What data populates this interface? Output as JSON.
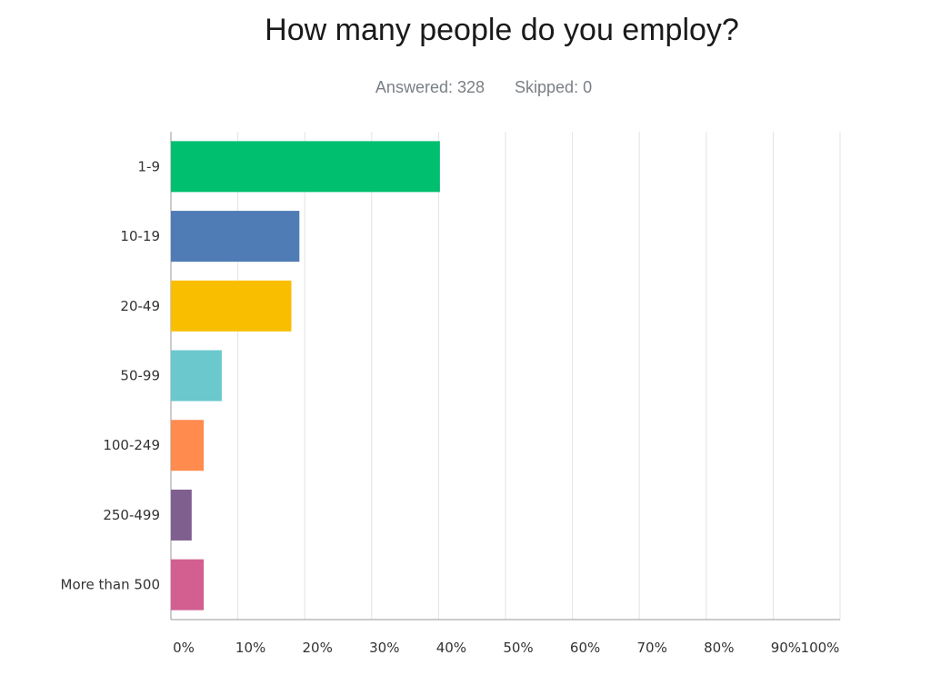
{
  "header": {
    "title": "How many people do you employ?",
    "answered": "Answered: 328",
    "skipped": "Skipped: 0"
  },
  "chart_data": {
    "type": "bar",
    "orientation": "horizontal",
    "title": "How many people do you employ?",
    "categories": [
      "1-9",
      "10-19",
      "20-49",
      "50-99",
      "100-249",
      "250-499",
      "More than 500"
    ],
    "values": [
      40.2,
      19.2,
      18.0,
      7.6,
      4.9,
      3.1,
      4.9
    ],
    "colors": [
      "#00bf6f",
      "#507cb6",
      "#f9be00",
      "#6bc8cd",
      "#ff8b4f",
      "#7f5f90",
      "#d25f90"
    ],
    "xlim": [
      0,
      100
    ],
    "xticks": [
      "0%",
      "10%",
      "20%",
      "30%",
      "40%",
      "50%",
      "60%",
      "70%",
      "80%",
      "90%",
      "100%"
    ],
    "grid": true,
    "legend": "none"
  }
}
